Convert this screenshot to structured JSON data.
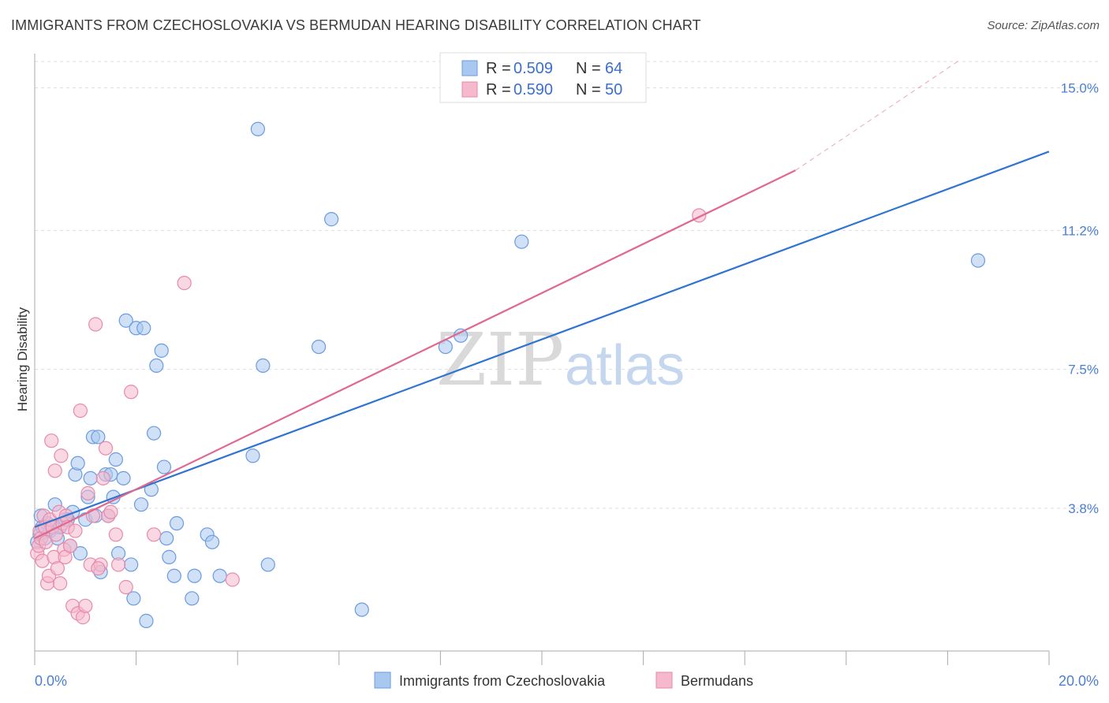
{
  "header": {
    "title": "IMMIGRANTS FROM CZECHOSLOVAKIA VS BERMUDAN HEARING DISABILITY CORRELATION CHART",
    "source": "Source: ZipAtlas.com"
  },
  "watermark": {
    "zip": "ZIP",
    "atlas": "atlas"
  },
  "colors": {
    "blue_fill": "#a9c8f0",
    "blue_stroke": "#6a9be0",
    "blue_line": "#2f74d0",
    "pink_fill": "#f6b8cc",
    "pink_stroke": "#e88aa8",
    "pink_line": "#e0688f",
    "grid": "#dddddd",
    "tick_text": "#4a7fd4"
  },
  "legend": {
    "rows": [
      {
        "r_label": "R =",
        "r_value": "0.509",
        "n_label": "N =",
        "n_value": "64"
      },
      {
        "r_label": "R =",
        "r_value": "0.590",
        "n_label": "N =",
        "n_value": "50"
      }
    ]
  },
  "bottom_legend": {
    "items": [
      "Immigrants from Czechoslovakia",
      "Bermudans"
    ]
  },
  "chart_data": {
    "type": "scatter",
    "title": "IMMIGRANTS FROM CZECHOSLOVAKIA VS BERMUDAN HEARING DISABILITY CORRELATION CHART",
    "xlabel": "",
    "ylabel": "Hearing Disability",
    "xlim": [
      0,
      20
    ],
    "ylim": [
      0,
      15.7
    ],
    "x_tick_labels": [
      "0.0%",
      "20.0%"
    ],
    "y_ticks": [
      3.8,
      7.5,
      11.2,
      15.0
    ],
    "y_tick_labels": [
      "3.8%",
      "7.5%",
      "11.2%",
      "15.0%"
    ],
    "grid": "horizontal dashed",
    "legend_placement": "top-center",
    "series": [
      {
        "name": "Immigrants from Czechoslovakia",
        "color": "#a9c8f0",
        "points": [
          [
            0.05,
            2.9
          ],
          [
            0.1,
            3.1
          ],
          [
            0.15,
            3.3
          ],
          [
            0.2,
            3.0
          ],
          [
            0.25,
            3.4
          ],
          [
            0.3,
            3.2
          ],
          [
            0.35,
            3.3
          ],
          [
            0.4,
            3.9
          ],
          [
            0.45,
            3.0
          ],
          [
            0.5,
            3.3
          ],
          [
            0.6,
            3.5
          ],
          [
            0.7,
            2.8
          ],
          [
            0.75,
            3.7
          ],
          [
            0.8,
            4.7
          ],
          [
            0.85,
            5.0
          ],
          [
            0.9,
            2.6
          ],
          [
            1.0,
            3.5
          ],
          [
            1.05,
            4.1
          ],
          [
            1.1,
            4.6
          ],
          [
            1.15,
            5.7
          ],
          [
            1.2,
            3.6
          ],
          [
            1.25,
            5.7
          ],
          [
            1.3,
            2.1
          ],
          [
            1.4,
            4.7
          ],
          [
            1.45,
            3.6
          ],
          [
            1.5,
            4.7
          ],
          [
            1.55,
            4.1
          ],
          [
            1.6,
            5.1
          ],
          [
            1.65,
            2.6
          ],
          [
            1.75,
            4.6
          ],
          [
            1.8,
            8.8
          ],
          [
            1.9,
            2.3
          ],
          [
            1.95,
            1.4
          ],
          [
            2.0,
            8.6
          ],
          [
            2.1,
            3.9
          ],
          [
            2.15,
            8.6
          ],
          [
            2.2,
            0.8
          ],
          [
            2.3,
            4.3
          ],
          [
            2.35,
            5.8
          ],
          [
            2.4,
            7.6
          ],
          [
            2.5,
            8.0
          ],
          [
            2.55,
            4.9
          ],
          [
            2.6,
            3.0
          ],
          [
            2.65,
            2.5
          ],
          [
            2.75,
            2.0
          ],
          [
            2.8,
            3.4
          ],
          [
            3.1,
            1.4
          ],
          [
            3.15,
            2.0
          ],
          [
            3.4,
            3.1
          ],
          [
            3.5,
            2.9
          ],
          [
            3.65,
            2.0
          ],
          [
            4.3,
            5.2
          ],
          [
            4.4,
            13.9
          ],
          [
            4.5,
            7.6
          ],
          [
            4.6,
            2.3
          ],
          [
            5.6,
            8.1
          ],
          [
            5.85,
            11.5
          ],
          [
            6.45,
            1.1
          ],
          [
            8.1,
            8.1
          ],
          [
            8.4,
            8.4
          ],
          [
            9.6,
            10.9
          ],
          [
            18.6,
            10.4
          ],
          [
            0.12,
            3.6
          ],
          [
            0.65,
            3.5
          ]
        ],
        "trendline": {
          "x": [
            0,
            20
          ],
          "y": [
            3.3,
            13.3
          ]
        }
      },
      {
        "name": "Bermudans",
        "color": "#f6b8cc",
        "points": [
          [
            0.05,
            2.6
          ],
          [
            0.08,
            2.8
          ],
          [
            0.1,
            3.2
          ],
          [
            0.12,
            3.0
          ],
          [
            0.15,
            2.4
          ],
          [
            0.18,
            3.6
          ],
          [
            0.2,
            3.3
          ],
          [
            0.22,
            2.9
          ],
          [
            0.25,
            1.8
          ],
          [
            0.28,
            2.0
          ],
          [
            0.3,
            3.5
          ],
          [
            0.33,
            5.6
          ],
          [
            0.35,
            3.3
          ],
          [
            0.38,
            2.5
          ],
          [
            0.4,
            4.8
          ],
          [
            0.42,
            3.1
          ],
          [
            0.45,
            2.2
          ],
          [
            0.48,
            3.7
          ],
          [
            0.5,
            1.8
          ],
          [
            0.52,
            5.2
          ],
          [
            0.55,
            3.4
          ],
          [
            0.58,
            2.7
          ],
          [
            0.6,
            2.5
          ],
          [
            0.62,
            3.6
          ],
          [
            0.65,
            3.3
          ],
          [
            0.7,
            2.8
          ],
          [
            0.75,
            1.2
          ],
          [
            0.8,
            3.2
          ],
          [
            0.85,
            1.0
          ],
          [
            0.9,
            6.4
          ],
          [
            0.95,
            0.9
          ],
          [
            1.0,
            1.2
          ],
          [
            1.05,
            4.2
          ],
          [
            1.1,
            2.3
          ],
          [
            1.15,
            3.6
          ],
          [
            1.2,
            8.7
          ],
          [
            1.3,
            2.3
          ],
          [
            1.35,
            4.6
          ],
          [
            1.4,
            5.4
          ],
          [
            1.45,
            3.6
          ],
          [
            1.5,
            3.7
          ],
          [
            1.6,
            3.1
          ],
          [
            1.65,
            2.3
          ],
          [
            1.8,
            1.7
          ],
          [
            1.9,
            6.9
          ],
          [
            2.35,
            3.1
          ],
          [
            2.95,
            9.8
          ],
          [
            3.9,
            1.9
          ],
          [
            13.1,
            11.6
          ],
          [
            1.25,
            2.2
          ]
        ],
        "trendline": {
          "x": [
            0,
            15
          ],
          "y": [
            3.0,
            12.8
          ]
        },
        "trendline_dashed_extension": {
          "x": [
            15,
            18.2
          ],
          "y": [
            12.8,
            15.7
          ]
        }
      }
    ]
  }
}
